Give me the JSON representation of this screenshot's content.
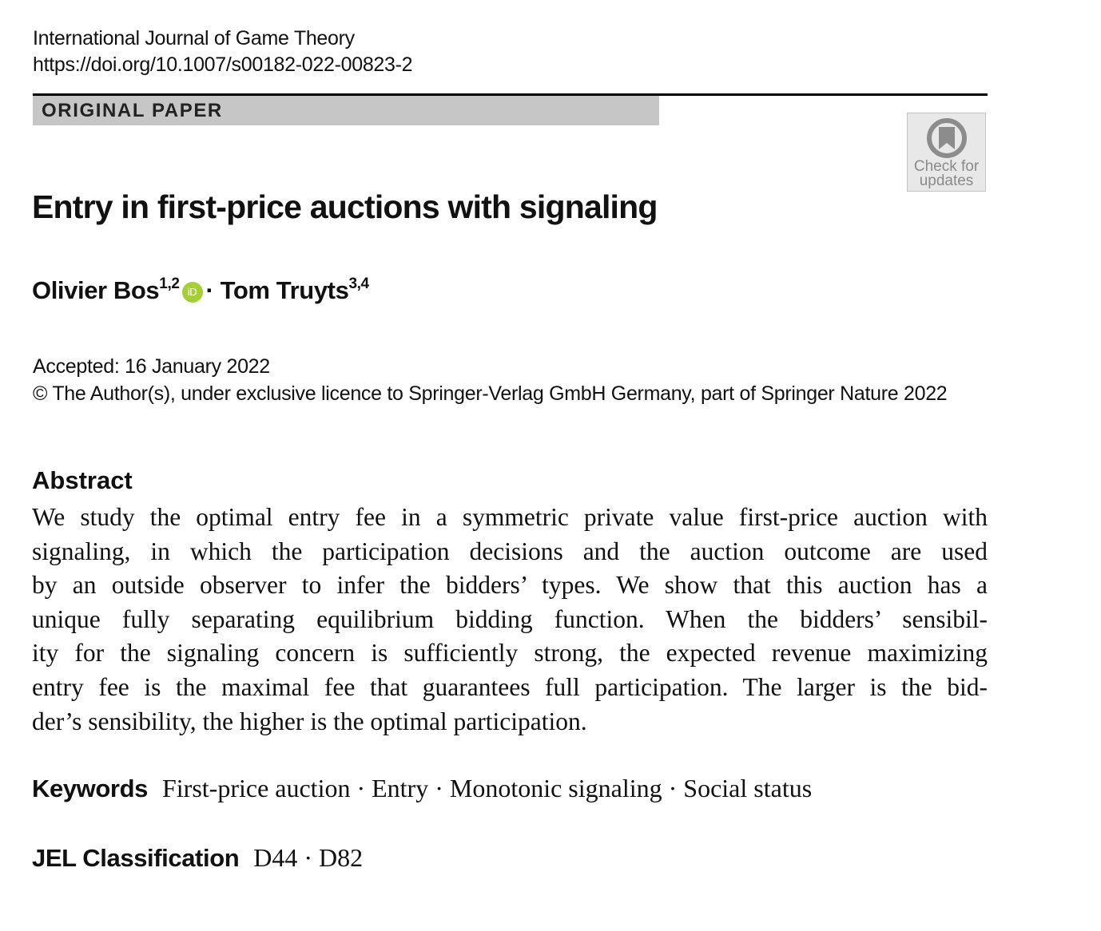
{
  "journal": {
    "name": "International Journal of Game Theory",
    "doi": "https://doi.org/10.1007/s00182-022-00823-2"
  },
  "article_type": "ORIGINAL PAPER",
  "check_updates": {
    "line1": "Check for",
    "line2": "updates"
  },
  "title": "Entry in first-price auctions with signaling",
  "authors": [
    {
      "name": "Olivier Bos",
      "affiliations": "1,2"
    },
    {
      "name": "Tom Truyts",
      "affiliations": "3,4"
    }
  ],
  "orcid_label": "iD",
  "separator": "·",
  "accepted": "Accepted: 16 January 2022",
  "copyright": "© The Author(s), under exclusive licence to Springer-Verlag GmbH Germany, part of Springer Nature 2022",
  "abstract": {
    "heading": "Abstract",
    "lines": [
      "We study the optimal entry fee in a symmetric private value first-price auction with",
      "signaling, in which the participation decisions and the auction outcome are used",
      "by an outside observer to infer the bidders’ types. We show that this auction has a",
      "unique fully separating equilibrium bidding function. When the bidders’ sensibil-",
      "ity for the signaling concern is sufficiently strong, the expected revenue maximizing",
      "entry fee is the maximal fee that guarantees full participation. The larger is the bid-",
      "der’s sensibility, the higher is the optimal participation."
    ]
  },
  "keywords": {
    "label": "Keywords",
    "value": "First-price auction · Entry · Monotonic signaling · Social status"
  },
  "jel": {
    "label": "JEL Classification",
    "value": "D44 · D82"
  }
}
